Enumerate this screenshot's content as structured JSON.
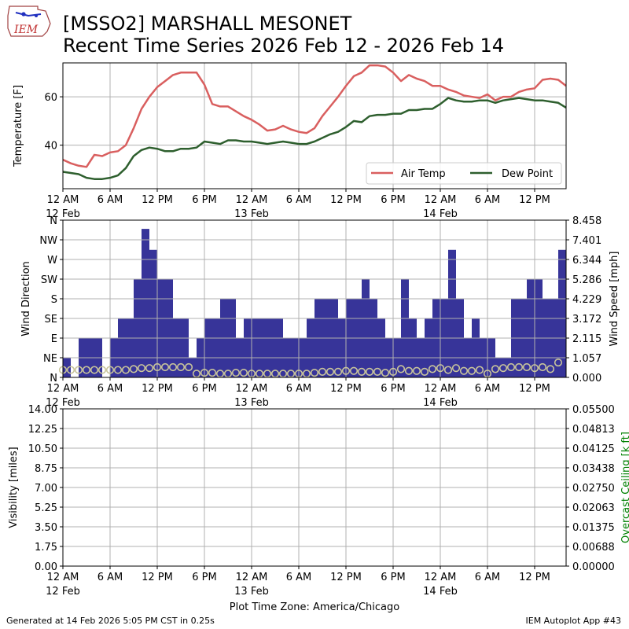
{
  "header": {
    "title_line1": "[MSSO2] MARSHALL MESONET",
    "title_line2": "Recent Time Series 2026 Feb 12 - 2026 Feb 14",
    "logo_text": "IEM"
  },
  "footer": {
    "generated": "Generated at 14 Feb 2026 5:05 PM CST in 0.25s",
    "app": "IEM Autoplot App #43"
  },
  "colors": {
    "air_temp": "#d95f5f",
    "dew_point": "#2e5f2e",
    "wind_bars": "#373499",
    "gust_markers": "#c8c49a",
    "ceiling_axis": "#008000",
    "grid": "#b0b0b0"
  },
  "time_axis": {
    "tick_labels": [
      "12 AM",
      "6 AM",
      "12 PM",
      "6 PM",
      "12 AM",
      "6 AM",
      "12 PM",
      "6 PM",
      "12 AM",
      "6 AM",
      "12 PM"
    ],
    "tick_hours": [
      0,
      6,
      12,
      18,
      24,
      30,
      36,
      42,
      48,
      54,
      60
    ],
    "date_labels": [
      {
        "hour": 0,
        "text": "12 Feb"
      },
      {
        "hour": 24,
        "text": "13 Feb"
      },
      {
        "hour": 48,
        "text": "14 Feb"
      }
    ],
    "range_hours": [
      0,
      64
    ],
    "xlabel": "Plot Time Zone: America/Chicago"
  },
  "chart_data": [
    {
      "type": "line",
      "ylabel": "Temperature [F]",
      "ylim": [
        22,
        74
      ],
      "yticks": [
        40,
        60
      ],
      "grid": true,
      "legend": "lower-right",
      "x_hours": [
        0,
        1,
        2,
        3,
        4,
        5,
        6,
        7,
        8,
        9,
        10,
        11,
        12,
        13,
        14,
        15,
        16,
        17,
        18,
        19,
        20,
        21,
        22,
        23,
        24,
        25,
        26,
        27,
        28,
        29,
        30,
        31,
        32,
        33,
        34,
        35,
        36,
        37,
        38,
        39,
        40,
        41,
        42,
        43,
        44,
        45,
        46,
        47,
        48,
        49,
        50,
        51,
        52,
        53,
        54,
        55,
        56,
        57,
        58,
        59,
        60,
        61,
        62,
        63,
        64
      ],
      "series": [
        {
          "name": "Air Temp",
          "values": [
            34,
            32.5,
            31.5,
            31,
            36,
            35.5,
            37,
            37.5,
            40,
            47,
            55,
            60,
            64,
            66.5,
            69,
            70,
            70,
            70,
            65,
            57,
            56,
            56,
            54,
            52,
            50.5,
            48.5,
            46,
            46.5,
            48,
            46.5,
            45.5,
            45,
            47,
            52,
            56,
            60,
            64.5,
            68.5,
            70,
            73,
            73,
            72.5,
            70,
            66.5,
            69,
            67.5,
            66.5,
            64.5,
            64.5,
            63,
            62,
            60.5,
            60,
            59.5,
            61,
            58.5,
            60,
            60,
            62,
            63,
            63.5,
            67,
            67.5,
            67,
            64.5
          ]
        },
        {
          "name": "Dew Point",
          "values": [
            29,
            28.5,
            28,
            26.5,
            26,
            26,
            26.5,
            27.5,
            30.5,
            35.5,
            38,
            39,
            38.5,
            37.5,
            37.5,
            38.5,
            38.5,
            39,
            41.5,
            41,
            40.5,
            42,
            42,
            41.5,
            41.5,
            41,
            40.5,
            41,
            41.5,
            41,
            40.5,
            40.5,
            41.5,
            43,
            44.5,
            45.5,
            47.5,
            50,
            49.5,
            52,
            52.5,
            52.5,
            53,
            53,
            54.5,
            54.5,
            55,
            55,
            57,
            59.5,
            58.5,
            58,
            58,
            58.5,
            58.5,
            57.5,
            58.5,
            59,
            59.5,
            59,
            58.5,
            58.5,
            58,
            57.5,
            55.5
          ]
        }
      ]
    },
    {
      "type": "bar",
      "ylabel": "Wind Direction",
      "y2label": "Wind Speed [mph]",
      "direction_labels": [
        "N",
        "NE",
        "E",
        "SE",
        "S",
        "SW",
        "W",
        "NW",
        "N"
      ],
      "direction_ylim": [
        0,
        360
      ],
      "speed_ticks": [
        "0.000",
        "1.057",
        "2.115",
        "3.172",
        "4.229",
        "5.286",
        "6.344",
        "7.401",
        "8.458"
      ],
      "speed_ylim": [
        0,
        8.458
      ],
      "grid": true,
      "bar_width_hours": 1,
      "direction_bars": [
        {
          "hour": 0.5,
          "dir": 45
        },
        {
          "hour": 2.5,
          "dir": 90
        },
        {
          "hour": 3.5,
          "dir": 90
        },
        {
          "hour": 4.5,
          "dir": 90
        },
        {
          "hour": 6.5,
          "dir": 90
        },
        {
          "hour": 7.5,
          "dir": 135
        },
        {
          "hour": 8.5,
          "dir": 135
        },
        {
          "hour": 9.5,
          "dir": 225
        },
        {
          "hour": 10.5,
          "dir": 340
        },
        {
          "hour": 11.5,
          "dir": 292
        },
        {
          "hour": 12.5,
          "dir": 225
        },
        {
          "hour": 13.5,
          "dir": 225
        },
        {
          "hour": 14.5,
          "dir": 135
        },
        {
          "hour": 15.5,
          "dir": 135
        },
        {
          "hour": 16.5,
          "dir": 45
        },
        {
          "hour": 17.5,
          "dir": 90
        },
        {
          "hour": 18.5,
          "dir": 135
        },
        {
          "hour": 19.5,
          "dir": 135
        },
        {
          "hour": 20.5,
          "dir": 180
        },
        {
          "hour": 21.5,
          "dir": 180
        },
        {
          "hour": 22.5,
          "dir": 90
        },
        {
          "hour": 23.5,
          "dir": 135
        },
        {
          "hour": 24.5,
          "dir": 135
        },
        {
          "hour": 25.5,
          "dir": 135
        },
        {
          "hour": 26.5,
          "dir": 135
        },
        {
          "hour": 27.5,
          "dir": 135
        },
        {
          "hour": 28.5,
          "dir": 90
        },
        {
          "hour": 29.5,
          "dir": 90
        },
        {
          "hour": 30.5,
          "dir": 90
        },
        {
          "hour": 31.5,
          "dir": 135
        },
        {
          "hour": 32.5,
          "dir": 180
        },
        {
          "hour": 33.5,
          "dir": 180
        },
        {
          "hour": 34.5,
          "dir": 180
        },
        {
          "hour": 35.5,
          "dir": 135
        },
        {
          "hour": 36.5,
          "dir": 180
        },
        {
          "hour": 37.5,
          "dir": 180
        },
        {
          "hour": 38.5,
          "dir": 225
        },
        {
          "hour": 39.5,
          "dir": 180
        },
        {
          "hour": 40.5,
          "dir": 135
        },
        {
          "hour": 41.5,
          "dir": 90
        },
        {
          "hour": 42.5,
          "dir": 90
        },
        {
          "hour": 43.5,
          "dir": 225
        },
        {
          "hour": 44.5,
          "dir": 135
        },
        {
          "hour": 45.5,
          "dir": 90
        },
        {
          "hour": 46.5,
          "dir": 135
        },
        {
          "hour": 47.5,
          "dir": 180
        },
        {
          "hour": 48.5,
          "dir": 180
        },
        {
          "hour": 49.5,
          "dir": 292
        },
        {
          "hour": 50.5,
          "dir": 180
        },
        {
          "hour": 51.5,
          "dir": 90
        },
        {
          "hour": 52.5,
          "dir": 135
        },
        {
          "hour": 53.5,
          "dir": 90
        },
        {
          "hour": 54.5,
          "dir": 90
        },
        {
          "hour": 55.5,
          "dir": 45
        },
        {
          "hour": 56.5,
          "dir": 45
        },
        {
          "hour": 57.5,
          "dir": 180
        },
        {
          "hour": 58.5,
          "dir": 180
        },
        {
          "hour": 59.5,
          "dir": 225
        },
        {
          "hour": 60.5,
          "dir": 225
        },
        {
          "hour": 61.5,
          "dir": 180
        },
        {
          "hour": 62.5,
          "dir": 180
        },
        {
          "hour": 63.5,
          "dir": 292
        }
      ],
      "wind_speed_markers": [
        {
          "hour": 0,
          "mph": 0.4
        },
        {
          "hour": 1,
          "mph": 0.4
        },
        {
          "hour": 2,
          "mph": 0.4
        },
        {
          "hour": 3,
          "mph": 0.4
        },
        {
          "hour": 4,
          "mph": 0.4
        },
        {
          "hour": 5,
          "mph": 0.4
        },
        {
          "hour": 6,
          "mph": 0.4
        },
        {
          "hour": 7,
          "mph": 0.4
        },
        {
          "hour": 8,
          "mph": 0.4
        },
        {
          "hour": 9,
          "mph": 0.45
        },
        {
          "hour": 10,
          "mph": 0.5
        },
        {
          "hour": 11,
          "mph": 0.5
        },
        {
          "hour": 12,
          "mph": 0.55
        },
        {
          "hour": 13,
          "mph": 0.55
        },
        {
          "hour": 14,
          "mph": 0.55
        },
        {
          "hour": 15,
          "mph": 0.55
        },
        {
          "hour": 16,
          "mph": 0.55
        },
        {
          "hour": 17,
          "mph": 0.2
        },
        {
          "hour": 18,
          "mph": 0.25
        },
        {
          "hour": 19,
          "mph": 0.25
        },
        {
          "hour": 20,
          "mph": 0.2
        },
        {
          "hour": 21,
          "mph": 0.2
        },
        {
          "hour": 22,
          "mph": 0.25
        },
        {
          "hour": 23,
          "mph": 0.25
        },
        {
          "hour": 24,
          "mph": 0.2
        },
        {
          "hour": 25,
          "mph": 0.2
        },
        {
          "hour": 26,
          "mph": 0.2
        },
        {
          "hour": 27,
          "mph": 0.2
        },
        {
          "hour": 28,
          "mph": 0.2
        },
        {
          "hour": 29,
          "mph": 0.2
        },
        {
          "hour": 30,
          "mph": 0.2
        },
        {
          "hour": 31,
          "mph": 0.2
        },
        {
          "hour": 32,
          "mph": 0.25
        },
        {
          "hour": 33,
          "mph": 0.3
        },
        {
          "hour": 34,
          "mph": 0.3
        },
        {
          "hour": 35,
          "mph": 0.3
        },
        {
          "hour": 36,
          "mph": 0.35
        },
        {
          "hour": 37,
          "mph": 0.35
        },
        {
          "hour": 38,
          "mph": 0.3
        },
        {
          "hour": 39,
          "mph": 0.3
        },
        {
          "hour": 40,
          "mph": 0.3
        },
        {
          "hour": 41,
          "mph": 0.25
        },
        {
          "hour": 42,
          "mph": 0.3
        },
        {
          "hour": 43,
          "mph": 0.45
        },
        {
          "hour": 44,
          "mph": 0.35
        },
        {
          "hour": 45,
          "mph": 0.35
        },
        {
          "hour": 46,
          "mph": 0.3
        },
        {
          "hour": 47,
          "mph": 0.45
        },
        {
          "hour": 48,
          "mph": 0.5
        },
        {
          "hour": 49,
          "mph": 0.4
        },
        {
          "hour": 50,
          "mph": 0.5
        },
        {
          "hour": 51,
          "mph": 0.35
        },
        {
          "hour": 52,
          "mph": 0.35
        },
        {
          "hour": 53,
          "mph": 0.4
        },
        {
          "hour": 54,
          "mph": 0.2
        },
        {
          "hour": 55,
          "mph": 0.45
        },
        {
          "hour": 56,
          "mph": 0.5
        },
        {
          "hour": 57,
          "mph": 0.55
        },
        {
          "hour": 58,
          "mph": 0.55
        },
        {
          "hour": 59,
          "mph": 0.55
        },
        {
          "hour": 60,
          "mph": 0.5
        },
        {
          "hour": 61,
          "mph": 0.55
        },
        {
          "hour": 62,
          "mph": 0.45
        },
        {
          "hour": 63,
          "mph": 0.8
        }
      ]
    },
    {
      "type": "line",
      "ylabel": "Visibility [miles]",
      "y2label": "Overcast Ceiling [k ft]",
      "ylim": [
        0,
        14
      ],
      "yticks": [
        "0.00",
        "1.75",
        "3.50",
        "5.25",
        "7.00",
        "8.75",
        "10.50",
        "12.25",
        "14.00"
      ],
      "y2lim": [
        0,
        0.055
      ],
      "y2ticks": [
        "0.00000",
        "0.00688",
        "0.01375",
        "0.02063",
        "0.02750",
        "0.03438",
        "0.04125",
        "0.04813",
        "0.05500"
      ],
      "grid": true,
      "series": []
    }
  ]
}
